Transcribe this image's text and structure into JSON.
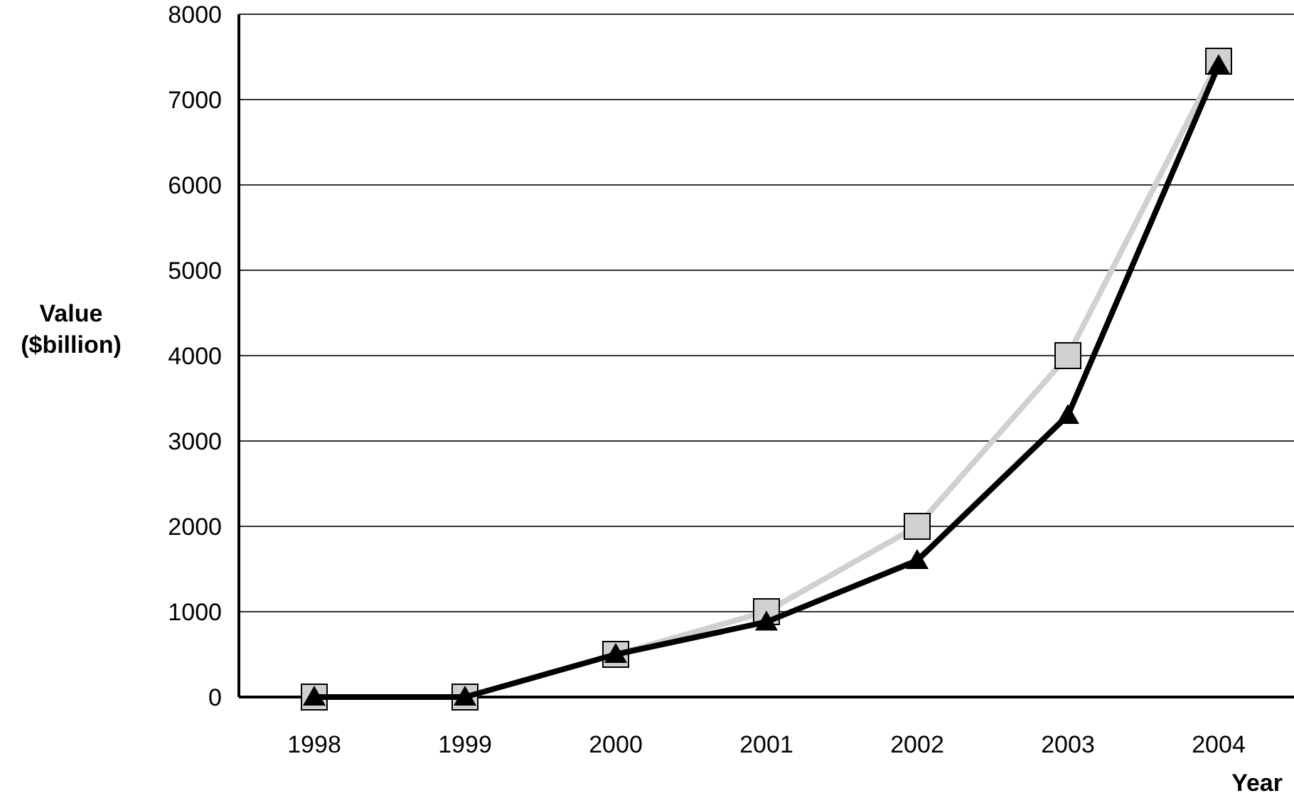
{
  "chart_data": {
    "type": "line",
    "xlabel": "Year",
    "ylabel": "Value ($billion)",
    "categories": [
      "1998",
      "1999",
      "2000",
      "2001",
      "2002",
      "2003",
      "2004"
    ],
    "series": [
      {
        "color": "#d0d0d0",
        "marker": "square",
        "values": [
          0,
          0,
          500,
          1000,
          2000,
          4000,
          7450
        ]
      },
      {
        "color": "#000000",
        "marker": "triangle",
        "values": [
          0,
          0,
          500,
          880,
          1600,
          3300,
          7400
        ]
      }
    ],
    "ylim": [
      0,
      8000
    ],
    "yticks": [
      0,
      1000,
      2000,
      3000,
      4000,
      5000,
      6000,
      7000,
      8000
    ],
    "grid": "y",
    "line_style": "solid"
  }
}
